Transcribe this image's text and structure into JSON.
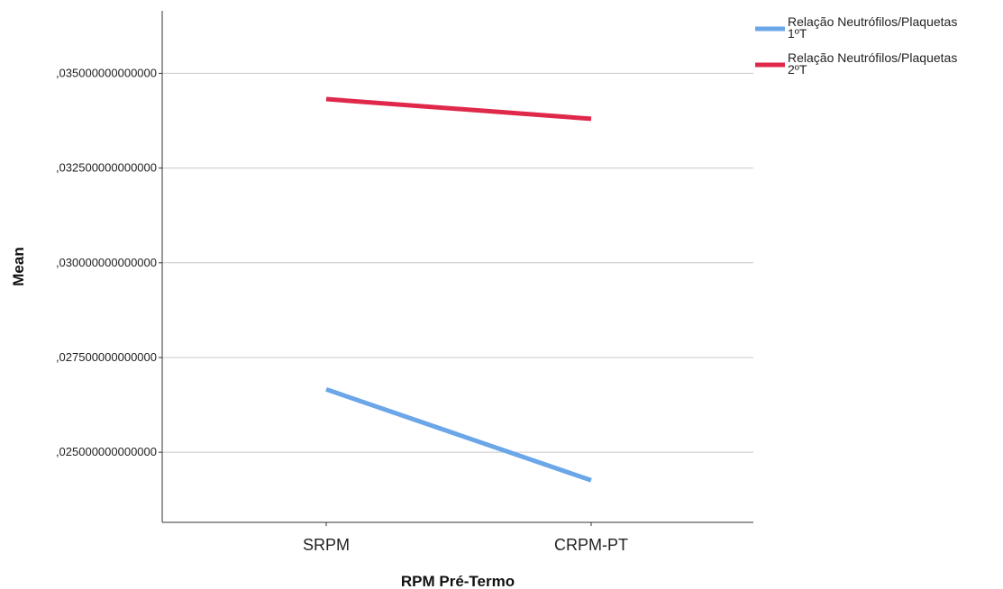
{
  "chart_data": {
    "type": "line",
    "xlabel": "RPM Pré-Termo",
    "ylabel": "Mean",
    "categories": [
      "SRPM",
      "CRPM-PT"
    ],
    "ylim": [
      0.02315,
      0.03665
    ],
    "yticks": [
      0.025,
      0.0275,
      0.03,
      0.0325,
      0.035
    ],
    "ytick_labels": [
      ",025000000000000",
      ",027500000000000",
      ",030000000000000",
      ",032500000000000",
      ",035000000000000"
    ],
    "grid": true,
    "legend_position": "top-right",
    "series": [
      {
        "name_line1": "Relação Neutrófilos/Plaquetas",
        "name_line2": "1ºT",
        "color": "#6aa6e8",
        "values": [
          0.02666,
          0.02426
        ]
      },
      {
        "name_line1": "Relação Neutrófilos/Plaquetas",
        "name_line2": "2ºT",
        "color": "#e0284a",
        "values": [
          0.03432,
          0.0338
        ]
      }
    ]
  }
}
